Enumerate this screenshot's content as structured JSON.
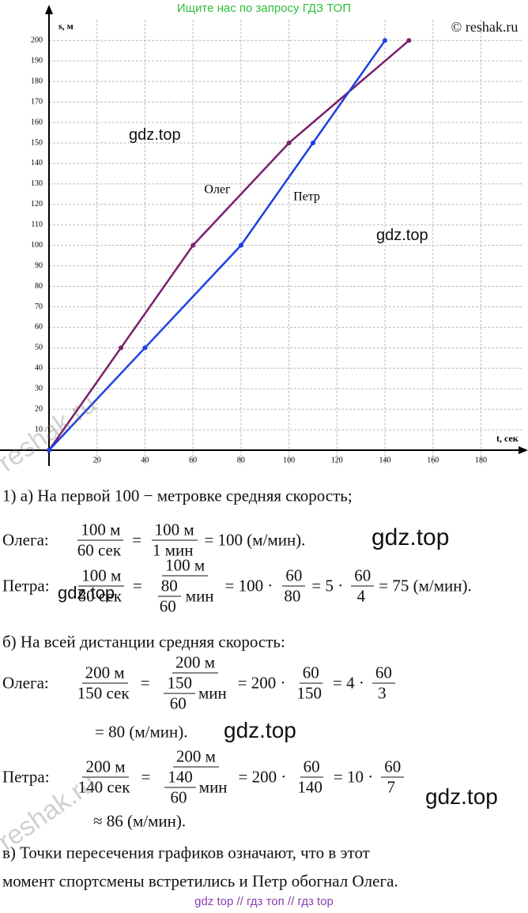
{
  "header": {
    "search": "Ищите нас по запросу ГДЗ ТОП",
    "copyright": "© reshak.ru"
  },
  "chart_data": {
    "type": "line",
    "y_label": "s, м",
    "x_label": "t, сек",
    "series": [
      {
        "name": "Олег",
        "color": "#7a1f6e",
        "x": [
          0,
          30,
          60,
          100,
          150
        ],
        "values": [
          0,
          50,
          100,
          150,
          200
        ]
      },
      {
        "name": "Петр",
        "color": "#1f3fe0",
        "x": [
          0,
          40,
          80,
          110,
          140
        ],
        "values": [
          0,
          50,
          100,
          150,
          200
        ]
      }
    ],
    "xlim": [
      0,
      195
    ],
    "ylim": [
      0,
      214
    ],
    "xticks": [
      20,
      40,
      60,
      80,
      100,
      120,
      140,
      160,
      180
    ],
    "yticks": [
      10,
      20,
      30,
      40,
      50,
      60,
      70,
      80,
      90,
      100,
      110,
      120,
      130,
      140,
      150,
      160,
      170,
      180,
      190,
      200
    ],
    "grid": true
  },
  "solution": {
    "lines": [
      [
        "1) а) На первой 100 − метровке средняя скорость;"
      ],
      [
        "Олега:",
        {
          "num": "100 м",
          "den": "60 сек"
        },
        "=",
        {
          "num": "100 м",
          "den": "1 мин"
        },
        "= 100 (м/мин)."
      ],
      [
        "Петра:",
        {
          "num": "100 м",
          "den": "80 сек"
        },
        "=",
        {
          "num": "100 м",
          "den": [
            {
              "num": "80",
              "den": "60"
            },
            "мин"
          ]
        },
        "= 100 ·",
        {
          "num": "60",
          "den": "80"
        },
        "= 5 ·",
        {
          "num": "60",
          "den": "4"
        },
        "= 75 (м/мин)."
      ],
      [
        "б) На всей дистанции средняя скорость:"
      ],
      [
        "Олега:",
        {
          "num": "200 м",
          "den": "150 сек"
        },
        "=",
        {
          "num": "200 м",
          "den": [
            {
              "num": "150",
              "den": "60"
            },
            "мин"
          ]
        },
        "= 200 ·",
        {
          "num": "60",
          "den": "150"
        },
        "= 4 ·",
        {
          "num": "60",
          "den": "3"
        }
      ],
      [
        "= 80 (м/мин)."
      ],
      [
        "Петра:",
        {
          "num": "200 м",
          "den": "140 сек"
        },
        "=",
        {
          "num": "200 м",
          "den": [
            {
              "num": "140",
              "den": "60"
            },
            "мин"
          ]
        },
        "= 200 ·",
        {
          "num": "60",
          "den": "140"
        },
        "= 10 ·",
        {
          "num": "60",
          "den": "7"
        }
      ],
      [
        "≈ 86 (м/мин)."
      ],
      [
        "в) Точки пересечения графиков означают, что в этот"
      ],
      [
        "момент спортсмены встретились и Петр обогнал Олега."
      ]
    ]
  },
  "watermarks": {
    "gdz": [
      "gdz.top",
      "gdz.top",
      "gdz.top",
      "gdz.top",
      "gdz.top",
      "gdz.top"
    ],
    "reshak": [
      "reshak.ru",
      "reshak.ru"
    ]
  },
  "footer": "gdz top  //  гдз топ  //  гдз top"
}
